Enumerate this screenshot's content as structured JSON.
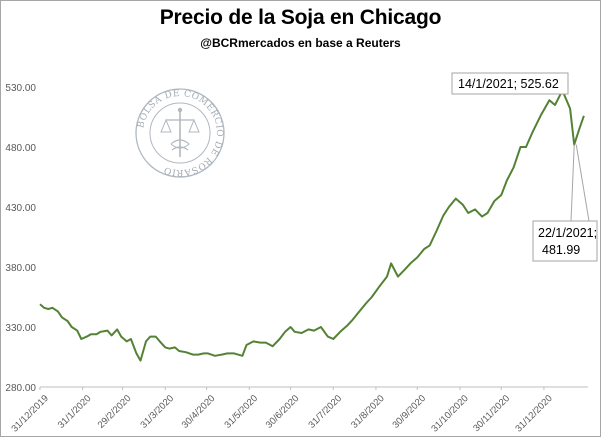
{
  "chart_data": {
    "type": "line",
    "title": "Precio de la Soja en Chicago",
    "subtitle": "@BCRmercados en base a Reuters",
    "xlabel": "",
    "ylabel": "",
    "ylim": [
      280,
      535
    ],
    "y_ticks": [
      280,
      330,
      380,
      430,
      480,
      530
    ],
    "y_tick_labels": [
      "280.00",
      "330.00",
      "380.00",
      "430.00",
      "480.00",
      "530.00"
    ],
    "x_tick_labels": [
      "31/12/2019",
      "31/1/2020",
      "29/2/2020",
      "31/3/2020",
      "30/4/2020",
      "31/5/2020",
      "30/6/2020",
      "31/7/2020",
      "31/8/2020",
      "30/9/2020",
      "31/10/2020",
      "30/11/2020",
      "31/12/2020"
    ],
    "x_ticks": [
      "2019-12-31",
      "2020-01-31",
      "2020-02-29",
      "2020-03-31",
      "2020-04-30",
      "2020-05-31",
      "2020-06-30",
      "2020-07-31",
      "2020-08-31",
      "2020-09-30",
      "2020-10-31",
      "2020-11-30",
      "2020-12-31"
    ],
    "x_range": [
      "2019-12-31",
      "2021-02-01"
    ],
    "grid": false,
    "line_color": "#548235",
    "series": [
      {
        "x": [
          "2019-12-31",
          "2020-01-03",
          "2020-01-06",
          "2020-01-09",
          "2020-01-13",
          "2020-01-16",
          "2020-01-20",
          "2020-01-23",
          "2020-01-27",
          "2020-01-30",
          "2020-02-03",
          "2020-02-06",
          "2020-02-10",
          "2020-02-13",
          "2020-02-18",
          "2020-02-21",
          "2020-02-25",
          "2020-02-28",
          "2020-03-03",
          "2020-03-06",
          "2020-03-10",
          "2020-03-13",
          "2020-03-17",
          "2020-03-20",
          "2020-03-24",
          "2020-03-27",
          "2020-03-31",
          "2020-04-03",
          "2020-04-07",
          "2020-04-10",
          "2020-04-15",
          "2020-04-20",
          "2020-04-24",
          "2020-04-28",
          "2020-05-01",
          "2020-05-06",
          "2020-05-11",
          "2020-05-15",
          "2020-05-20",
          "2020-05-26",
          "2020-05-29",
          "2020-06-03",
          "2020-06-08",
          "2020-06-12",
          "2020-06-17",
          "2020-06-22",
          "2020-06-26",
          "2020-06-30",
          "2020-07-03",
          "2020-07-08",
          "2020-07-13",
          "2020-07-17",
          "2020-07-22",
          "2020-07-27",
          "2020-07-31",
          "2020-08-05",
          "2020-08-10",
          "2020-08-14",
          "2020-08-19",
          "2020-08-24",
          "2020-08-28",
          "2020-09-02",
          "2020-09-08",
          "2020-09-11",
          "2020-09-16",
          "2020-09-21",
          "2020-09-25",
          "2020-09-30",
          "2020-10-05",
          "2020-10-09",
          "2020-10-14",
          "2020-10-19",
          "2020-10-23",
          "2020-10-28",
          "2020-11-02",
          "2020-11-06",
          "2020-11-11",
          "2020-11-16",
          "2020-11-20",
          "2020-11-25",
          "2020-11-30",
          "2020-12-04",
          "2020-12-09",
          "2020-12-14",
          "2020-12-18",
          "2020-12-23",
          "2020-12-29",
          "2021-01-04",
          "2021-01-08",
          "2021-01-12",
          "2021-01-14",
          "2021-01-19",
          "2021-01-22",
          "2021-01-26",
          "2021-01-29"
        ],
        "values": [
          349,
          346,
          345,
          346,
          343,
          338,
          335,
          330,
          327,
          320,
          322,
          324,
          324,
          326,
          327,
          323,
          328,
          322,
          318,
          320,
          308,
          302,
          318,
          322,
          322,
          318,
          313,
          312,
          313,
          310,
          309,
          307,
          307,
          308,
          308,
          306,
          307,
          308,
          308,
          306,
          315,
          318,
          317,
          317,
          314,
          320,
          326,
          330,
          326,
          325,
          328,
          327,
          330,
          322,
          320,
          326,
          331,
          336,
          343,
          350,
          355,
          363,
          372,
          383,
          372,
          378,
          383,
          388,
          395,
          398,
          410,
          423,
          430,
          437,
          432,
          425,
          428,
          422,
          425,
          435,
          440,
          452,
          463,
          480,
          480,
          493,
          507,
          519,
          515,
          524,
          525.62,
          512,
          481.99,
          496,
          506
        ]
      }
    ],
    "annotations": [
      {
        "text": "14/1/2021; 525.62",
        "x": "2021-01-14",
        "y": 525.62
      },
      {
        "text_line1": "22/1/2021;",
        "text_line2": "481.99",
        "x": "2021-01-22",
        "y": 481.99
      }
    ]
  },
  "logo": {
    "name": "BOLSA DE COMERCIO DE ROSARIO"
  }
}
